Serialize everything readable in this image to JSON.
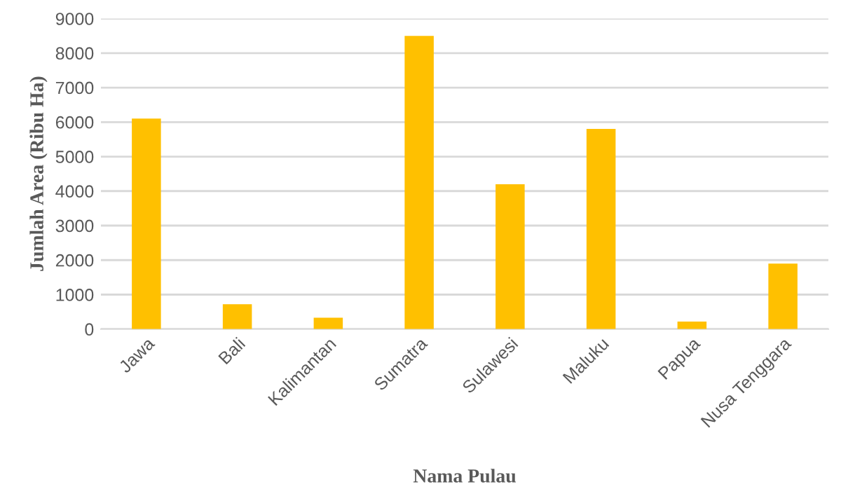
{
  "chart_data": {
    "type": "bar",
    "categories": [
      "Jawa",
      "Bali",
      "Kalimantan",
      "Sumatra",
      "Sulawesi",
      "Maluku",
      "Papua",
      "Nusa Tenggara"
    ],
    "values": [
      6100,
      720,
      330,
      8500,
      4200,
      5800,
      220,
      1900
    ],
    "color": "#ffc000",
    "xlabel": "Nama Pulau",
    "ylabel": "Jumlah Area (Ribu Ha)",
    "ylim": [
      0,
      9000
    ],
    "yticks": [
      0,
      1000,
      2000,
      3000,
      4000,
      5000,
      6000,
      7000,
      8000,
      9000
    ],
    "grid": "y"
  }
}
